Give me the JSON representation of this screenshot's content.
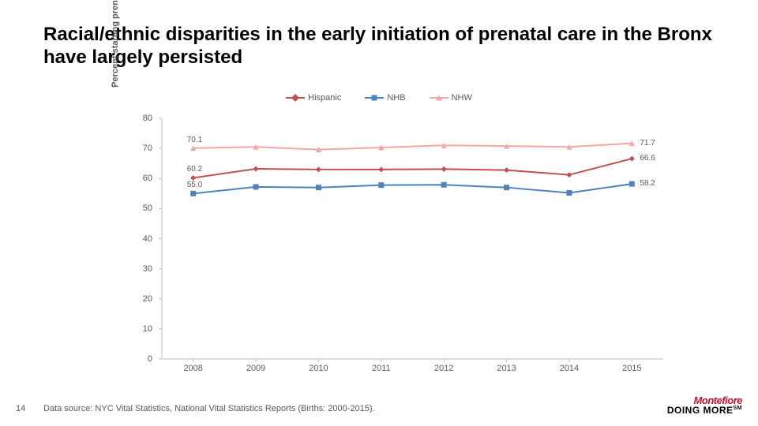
{
  "title": "Racial/ethnic disparities in the early initiation of prenatal care in the Bronx have largely persisted",
  "chart": {
    "type": "line",
    "y_axis_label": "Percent starting prenatal care in the first trimester",
    "x_categories": [
      "2008",
      "2009",
      "2010",
      "2011",
      "2012",
      "2013",
      "2014",
      "2015"
    ],
    "ylim": [
      0,
      80
    ],
    "ytick_step": 10,
    "axis_color": "#bfbfbf",
    "tick_font_size": 11,
    "tick_color": "#595959",
    "line_width": 2,
    "marker_size": 7,
    "series": [
      {
        "name": "Hispanic",
        "color": "#c0504d",
        "marker": "diamond",
        "values": [
          60.2,
          63.2,
          63.0,
          63.0,
          63.1,
          62.8,
          61.2,
          66.6
        ],
        "start_label": "60.2",
        "end_label": "66.6"
      },
      {
        "name": "NHB",
        "color": "#4f81bd",
        "marker": "square",
        "values": [
          55.0,
          57.2,
          57.0,
          57.8,
          57.9,
          57.0,
          55.2,
          58.2
        ],
        "start_label": "55.0",
        "end_label": "58.2"
      },
      {
        "name": "NHW",
        "color": "#f4a7a3",
        "marker": "triangle",
        "values": [
          70.1,
          70.5,
          69.6,
          70.3,
          71.0,
          70.8,
          70.5,
          71.7
        ],
        "start_label": "70.1",
        "end_label": "71.7"
      }
    ]
  },
  "page_number": "14",
  "source_note": "Data source: NYC Vital Statistics, National Vital Statistics Reports (Births: 2000-2015).",
  "logo": {
    "brand": "Montefiore",
    "tagline": "DOING MORE",
    "tm": "SM"
  }
}
